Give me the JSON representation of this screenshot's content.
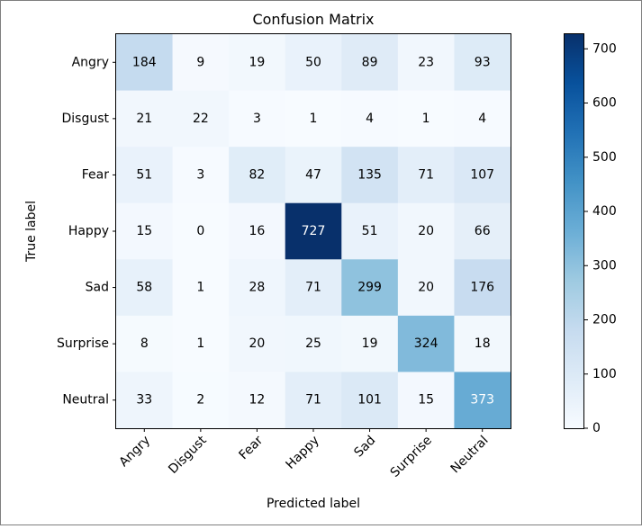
{
  "chart_data": {
    "type": "heatmap",
    "title": "Confusion Matrix",
    "xlabel": "Predicted label",
    "ylabel": "True label",
    "x_categories": [
      "Angry",
      "Disgust",
      "Fear",
      "Happy",
      "Sad",
      "Surprise",
      "Neutral"
    ],
    "y_categories": [
      "Angry",
      "Disgust",
      "Fear",
      "Happy",
      "Sad",
      "Surprise",
      "Neutral"
    ],
    "values": [
      [
        184,
        9,
        19,
        50,
        89,
        23,
        93
      ],
      [
        21,
        22,
        3,
        1,
        4,
        1,
        4
      ],
      [
        51,
        3,
        82,
        47,
        135,
        71,
        107
      ],
      [
        15,
        0,
        16,
        727,
        51,
        20,
        66
      ],
      [
        58,
        1,
        28,
        71,
        299,
        20,
        176
      ],
      [
        8,
        1,
        20,
        25,
        19,
        324,
        18
      ],
      [
        33,
        2,
        12,
        71,
        101,
        15,
        373
      ]
    ],
    "colormap": "Blues",
    "vmin": 0,
    "vmax": 727,
    "colorbar_ticks": [
      0,
      100,
      200,
      300,
      400,
      500,
      600,
      700
    ],
    "x_tick_rotation": "45 degrees",
    "grid": false
  }
}
